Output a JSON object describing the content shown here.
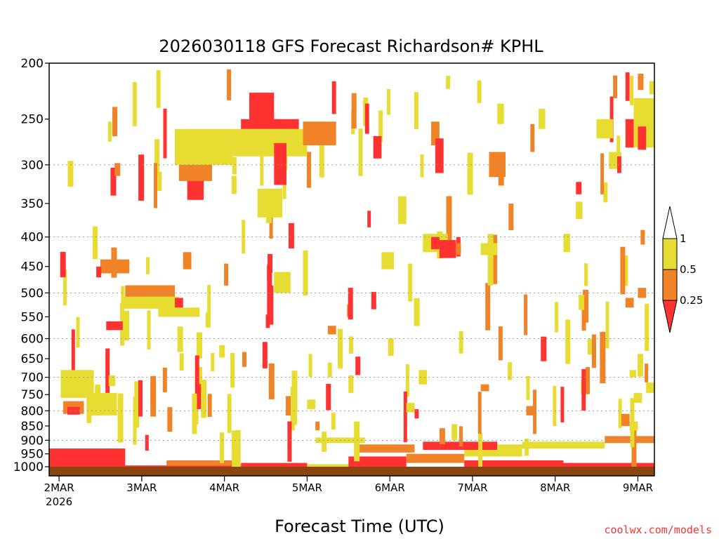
{
  "chart_data": {
    "type": "heatmap",
    "title": "2026030118 GFS Forecast Richardson# KPHL",
    "xlabel": "Forecast Time (UTC)",
    "credit": "coolwx.com/models",
    "x_ticks": [
      {
        "label": "2MAR",
        "sublabel": "2026",
        "value": 0
      },
      {
        "label": "3MAR",
        "value": 1
      },
      {
        "label": "4MAR",
        "value": 2
      },
      {
        "label": "5MAR",
        "value": 3
      },
      {
        "label": "6MAR",
        "value": 4
      },
      {
        "label": "7MAR",
        "value": 5
      },
      {
        "label": "8MAR",
        "value": 6
      },
      {
        "label": "9MAR",
        "value": 7
      }
    ],
    "xlim": [
      -0.12,
      7.2
    ],
    "y_ticks": [
      200,
      250,
      300,
      350,
      400,
      450,
      500,
      550,
      600,
      650,
      700,
      750,
      800,
      850,
      900,
      950,
      1000
    ],
    "y_gridlines": [
      300,
      400,
      500,
      600,
      700,
      800,
      900
    ],
    "ylim_hpa": [
      200,
      1000
    ],
    "y_scale": "log-pressure (inverted)",
    "legend": {
      "placement": "right",
      "levels": [
        {
          "label": "1",
          "value": 1
        },
        {
          "label": "0.5",
          "value": 0.5
        },
        {
          "label": "0.25",
          "value": 0.25
        }
      ],
      "colors": {
        "above_1": "#ffffff",
        "0.5_to_1": "#e6dc32",
        "0.25_to_0.5": "#f08228",
        "below_0.25": "#ff3232"
      }
    },
    "colors": {
      "yellow": "#e6dc32",
      "orange": "#f08228",
      "red": "#ff3232",
      "terrain": "#8b4513"
    },
    "cells": [
      {
        "x": 0.02,
        "p": 720,
        "w": 0.4,
        "dp": 80,
        "c": "yellow"
      },
      {
        "x": 0.05,
        "p": 790,
        "w": 0.25,
        "dp": 40,
        "c": "orange"
      },
      {
        "x": 0.1,
        "p": 800,
        "w": 0.15,
        "dp": 25,
        "c": "red"
      },
      {
        "x": 0.35,
        "p": 780,
        "w": 0.35,
        "dp": 70,
        "c": "yellow"
      },
      {
        "x": 0.8,
        "p": 500,
        "w": 0.6,
        "dp": 30,
        "c": "orange"
      },
      {
        "x": 0.75,
        "p": 520,
        "w": 0.7,
        "dp": 25,
        "c": "yellow"
      },
      {
        "x": 0.5,
        "p": 450,
        "w": 0.35,
        "dp": 25,
        "c": "orange"
      },
      {
        "x": 0.45,
        "p": 460,
        "w": 0.06,
        "dp": 20,
        "c": "red"
      },
      {
        "x": 0.57,
        "p": 570,
        "w": 0.2,
        "dp": 20,
        "c": "red"
      },
      {
        "x": 1.55,
        "p": 330,
        "w": 0.2,
        "dp": 30,
        "c": "red"
      },
      {
        "x": 1.45,
        "p": 300,
        "w": 0.4,
        "dp": 40,
        "c": "orange"
      },
      {
        "x": 1.4,
        "p": 280,
        "w": 0.7,
        "dp": 40,
        "c": "yellow"
      },
      {
        "x": 2.3,
        "p": 240,
        "w": 0.3,
        "dp": 30,
        "c": "red"
      },
      {
        "x": 2.2,
        "p": 265,
        "w": 0.7,
        "dp": 30,
        "c": "red"
      },
      {
        "x": 2.1,
        "p": 275,
        "w": 0.9,
        "dp": 30,
        "c": "yellow"
      },
      {
        "x": 2.95,
        "p": 265,
        "w": 0.4,
        "dp": 25,
        "c": "orange"
      },
      {
        "x": 2.6,
        "p": 300,
        "w": 0.15,
        "dp": 50,
        "c": "red"
      },
      {
        "x": 2.4,
        "p": 350,
        "w": 0.3,
        "dp": 40,
        "c": "yellow"
      },
      {
        "x": 2.6,
        "p": 480,
        "w": 0.2,
        "dp": 40,
        "c": "yellow"
      },
      {
        "x": 2.5,
        "p": 560,
        "w": 0.05,
        "dp": 30,
        "c": "red"
      },
      {
        "x": 3.3,
        "p": 230,
        "w": 0.05,
        "dp": 30,
        "c": "red"
      },
      {
        "x": 3.7,
        "p": 250,
        "w": 0.05,
        "dp": 30,
        "c": "red"
      },
      {
        "x": 3.8,
        "p": 280,
        "w": 0.1,
        "dp": 25,
        "c": "red"
      },
      {
        "x": 4.5,
        "p": 265,
        "w": 0.1,
        "dp": 25,
        "c": "orange"
      },
      {
        "x": 4.55,
        "p": 290,
        "w": 0.1,
        "dp": 40,
        "c": "red"
      },
      {
        "x": 4.1,
        "p": 360,
        "w": 0.1,
        "dp": 40,
        "c": "yellow"
      },
      {
        "x": 4.4,
        "p": 410,
        "w": 0.3,
        "dp": 30,
        "c": "yellow"
      },
      {
        "x": 4.5,
        "p": 410,
        "w": 0.1,
        "dp": 20,
        "c": "red"
      },
      {
        "x": 3.9,
        "p": 440,
        "w": 0.15,
        "dp": 30,
        "c": "yellow"
      },
      {
        "x": 5.7,
        "p": 270,
        "w": 0.05,
        "dp": 30,
        "c": "orange"
      },
      {
        "x": 6.5,
        "p": 260,
        "w": 0.2,
        "dp": 20,
        "c": "yellow"
      },
      {
        "x": 6.7,
        "p": 220,
        "w": 0.05,
        "dp": 20,
        "c": "orange"
      },
      {
        "x": 6.85,
        "p": 220,
        "w": 0.05,
        "dp": 25,
        "c": "red"
      },
      {
        "x": 6.85,
        "p": 265,
        "w": 0.1,
        "dp": 30,
        "c": "red"
      },
      {
        "x": 6.95,
        "p": 255,
        "w": 0.25,
        "dp": 50,
        "c": "yellow"
      },
      {
        "x": 7.0,
        "p": 270,
        "w": 0.1,
        "dp": 25,
        "c": "red"
      },
      {
        "x": 6.65,
        "p": 295,
        "w": 0.15,
        "dp": 20,
        "c": "yellow"
      },
      {
        "x": 6.75,
        "p": 300,
        "w": 0.05,
        "dp": 20,
        "c": "red"
      },
      {
        "x": 5.2,
        "p": 300,
        "w": 0.2,
        "dp": 30,
        "c": "orange"
      },
      {
        "x": 4.6,
        "p": 420,
        "w": 0.2,
        "dp": 30,
        "c": "red"
      },
      {
        "x": 5.1,
        "p": 420,
        "w": 0.2,
        "dp": 20,
        "c": "yellow"
      },
      {
        "x": 4.8,
        "p": 420,
        "w": 0.06,
        "dp": 20,
        "c": "orange"
      },
      {
        "x": 6.1,
        "p": 410,
        "w": 0.08,
        "dp": 30,
        "c": "yellow"
      },
      {
        "x": 5.8,
        "p": 250,
        "w": 0.08,
        "dp": 20,
        "c": "yellow"
      },
      {
        "x": 5.3,
        "p": 245,
        "w": 0.08,
        "dp": 20,
        "c": "yellow"
      },
      {
        "x": 6.25,
        "p": 360,
        "w": 0.08,
        "dp": 25,
        "c": "yellow"
      },
      {
        "x": 7.0,
        "p": 500,
        "w": 0.1,
        "dp": 20,
        "c": "orange"
      },
      {
        "x": 6.85,
        "p": 520,
        "w": 0.1,
        "dp": 20,
        "c": "orange"
      },
      {
        "x": 1.2,
        "p": 540,
        "w": 0.5,
        "dp": 20,
        "c": "yellow"
      },
      {
        "x": 1.4,
        "p": 520,
        "w": 0.1,
        "dp": 20,
        "c": "red"
      },
      {
        "x": 3.25,
        "p": 580,
        "w": 0.1,
        "dp": 20,
        "c": "orange"
      },
      {
        "x": 3.0,
        "p": 780,
        "w": 0.1,
        "dp": 30,
        "c": "yellow"
      },
      {
        "x": 3.1,
        "p": 850,
        "w": 0.05,
        "dp": 30,
        "c": "orange"
      },
      {
        "x": 4.2,
        "p": 790,
        "w": 0.1,
        "dp": 30,
        "c": "yellow"
      },
      {
        "x": 4.3,
        "p": 810,
        "w": 0.05,
        "dp": 30,
        "c": "red"
      },
      {
        "x": 6.8,
        "p": 830,
        "w": 0.1,
        "dp": 40,
        "c": "orange"
      },
      {
        "x": 6.9,
        "p": 850,
        "w": 0.1,
        "dp": 30,
        "c": "yellow"
      },
      {
        "x": 7.1,
        "p": 730,
        "w": 0.1,
        "dp": 30,
        "c": "yellow"
      },
      {
        "x": 5.1,
        "p": 730,
        "w": 0.1,
        "dp": 20,
        "c": "orange"
      },
      {
        "x": 5.65,
        "p": 800,
        "w": 0.1,
        "dp": 30,
        "c": "orange"
      },
      {
        "x": 6.95,
        "p": 760,
        "w": 0.1,
        "dp": 30,
        "c": "yellow"
      },
      {
        "x": 6.9,
        "p": 690,
        "w": 0.08,
        "dp": 20,
        "c": "yellow"
      },
      {
        "x": 3.5,
        "p": 720,
        "w": 0.06,
        "dp": 50,
        "c": "yellow"
      },
      {
        "x": 3.25,
        "p": 680,
        "w": 0.05,
        "dp": 40,
        "c": "yellow"
      },
      {
        "x": 1.5,
        "p": 440,
        "w": 0.1,
        "dp": 30,
        "c": "orange"
      },
      {
        "x": 0.6,
        "p": 710,
        "w": 0.08,
        "dp": 30,
        "c": "yellow"
      },
      {
        "x": 4.35,
        "p": 700,
        "w": 0.1,
        "dp": 40,
        "c": "yellow"
      }
    ],
    "bottom_bands": [
      {
        "x0": -0.12,
        "x1": 0.8,
        "p0": 930,
        "p1": 1010,
        "c": "red"
      },
      {
        "x0": 0.8,
        "x1": 2.2,
        "p0": 995,
        "p1": 1010,
        "c": "red"
      },
      {
        "x0": 1.3,
        "x1": 2.1,
        "p0": 975,
        "p1": 995,
        "c": "orange"
      },
      {
        "x0": 2.2,
        "x1": 3.0,
        "p0": 985,
        "p1": 1010,
        "c": "red"
      },
      {
        "x0": 3.0,
        "x1": 3.5,
        "p0": 990,
        "p1": 1010,
        "c": "yellow"
      },
      {
        "x0": 3.5,
        "x1": 4.2,
        "p0": 960,
        "p1": 1010,
        "c": "red"
      },
      {
        "x0": 4.2,
        "x1": 4.9,
        "p0": 950,
        "p1": 985,
        "c": "orange"
      },
      {
        "x0": 4.9,
        "x1": 5.6,
        "p0": 930,
        "p1": 960,
        "c": "yellow"
      },
      {
        "x0": 4.9,
        "x1": 6.1,
        "p0": 975,
        "p1": 1010,
        "c": "red"
      },
      {
        "x0": 5.6,
        "x1": 6.6,
        "p0": 905,
        "p1": 930,
        "c": "yellow"
      },
      {
        "x0": 6.1,
        "x1": 7.2,
        "p0": 985,
        "p1": 1010,
        "c": "red"
      },
      {
        "x0": 6.6,
        "x1": 7.2,
        "p0": 885,
        "p1": 910,
        "c": "orange"
      },
      {
        "x0": 3.1,
        "x1": 3.7,
        "p0": 890,
        "p1": 910,
        "c": "yellow"
      },
      {
        "x0": 3.6,
        "x1": 4.3,
        "p0": 915,
        "p1": 945,
        "c": "orange"
      },
      {
        "x0": 4.4,
        "x1": 5.3,
        "p0": 905,
        "p1": 935,
        "c": "red"
      },
      {
        "x0": 5.3,
        "x1": 5.7,
        "p0": 915,
        "p1": 930,
        "c": "yellow"
      }
    ],
    "strips": {
      "seed": 7,
      "count": 160,
      "x_range": [
        0.0,
        7.15
      ],
      "p_range": [
        205,
        900
      ],
      "colors": [
        "yellow",
        "yellow",
        "yellow",
        "orange",
        "red"
      ]
    }
  }
}
